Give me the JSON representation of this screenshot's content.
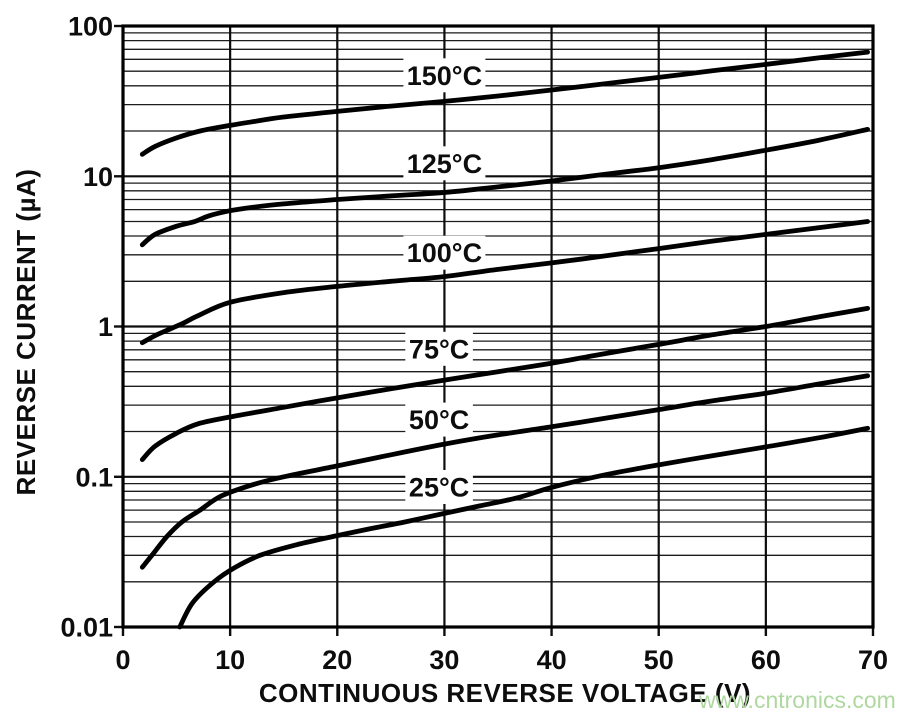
{
  "chart_data": {
    "type": "line",
    "title": "",
    "x_axis": {
      "label": "CONTINUOUS REVERSE VOLTAGE (V)",
      "min": 0,
      "max": 70,
      "tick_values": [
        0,
        10,
        20,
        30,
        40,
        50,
        60,
        70
      ],
      "tick_labels": [
        "0",
        "10",
        "20",
        "30",
        "40",
        "50",
        "60",
        "70"
      ],
      "gridlines": "major-every-10V"
    },
    "y_axis": {
      "label": "REVERSE CURRENT (µA)",
      "scale": "log",
      "min": 0.01,
      "max": 100,
      "tick_values": [
        100,
        10,
        1,
        0.1,
        0.01
      ],
      "tick_labels": [
        "100",
        "10",
        "1",
        "0.1",
        "0.01"
      ],
      "gridlines": "major-decades-plus-log-minors"
    },
    "series": [
      {
        "name": "150°C",
        "label_at": [
          30,
          47
        ],
        "points": [
          [
            1.8,
            14
          ],
          [
            3,
            15.8
          ],
          [
            5,
            18
          ],
          [
            7.2,
            20
          ],
          [
            10,
            21.8
          ],
          [
            12,
            23
          ],
          [
            15,
            24.8
          ],
          [
            20,
            27
          ],
          [
            25,
            29.3
          ],
          [
            30,
            31.5
          ],
          [
            35,
            34.2
          ],
          [
            40,
            37.5
          ],
          [
            45,
            41.3
          ],
          [
            50,
            45.5
          ],
          [
            55,
            50.3
          ],
          [
            60,
            55.5
          ],
          [
            65,
            61.5
          ],
          [
            69.5,
            67
          ]
        ]
      },
      {
        "name": "125°C",
        "label_at": [
          30,
          12.2
        ],
        "points": [
          [
            1.8,
            3.5
          ],
          [
            3,
            4.1
          ],
          [
            5,
            4.65
          ],
          [
            6.7,
            5
          ],
          [
            8,
            5.45
          ],
          [
            10,
            5.9
          ],
          [
            12,
            6.2
          ],
          [
            15,
            6.55
          ],
          [
            20,
            7
          ],
          [
            25,
            7.4
          ],
          [
            30,
            7.8
          ],
          [
            35,
            8.5
          ],
          [
            40,
            9.3
          ],
          [
            45,
            10.3
          ],
          [
            50,
            11.4
          ],
          [
            55,
            12.9
          ],
          [
            60,
            14.9
          ],
          [
            65,
            17.4
          ],
          [
            69.5,
            20.5
          ]
        ]
      },
      {
        "name": "100°C",
        "label_at": [
          30,
          3.1
        ],
        "points": [
          [
            1.8,
            0.78
          ],
          [
            3,
            0.87
          ],
          [
            4.5,
            0.97
          ],
          [
            5.6,
            1.05
          ],
          [
            7,
            1.18
          ],
          [
            10,
            1.45
          ],
          [
            15,
            1.68
          ],
          [
            20,
            1.85
          ],
          [
            25,
            2
          ],
          [
            30,
            2.15
          ],
          [
            35,
            2.4
          ],
          [
            40,
            2.65
          ],
          [
            45,
            2.95
          ],
          [
            50,
            3.3
          ],
          [
            55,
            3.7
          ],
          [
            60,
            4.1
          ],
          [
            65,
            4.55
          ],
          [
            69.5,
            5
          ]
        ]
      },
      {
        "name": "75°C",
        "label_at": [
          29.5,
          0.71
        ],
        "points": [
          [
            1.8,
            0.13
          ],
          [
            3,
            0.16
          ],
          [
            5,
            0.195
          ],
          [
            7,
            0.225
          ],
          [
            10,
            0.25
          ],
          [
            15,
            0.29
          ],
          [
            20,
            0.335
          ],
          [
            25,
            0.385
          ],
          [
            30,
            0.44
          ],
          [
            35,
            0.5
          ],
          [
            40,
            0.57
          ],
          [
            45,
            0.66
          ],
          [
            50,
            0.76
          ],
          [
            55,
            0.88
          ],
          [
            60,
            1.0
          ],
          [
            65,
            1.16
          ],
          [
            69.5,
            1.32
          ]
        ]
      },
      {
        "name": "50°C",
        "label_at": [
          29.5,
          0.24
        ],
        "points": [
          [
            1.8,
            0.025
          ],
          [
            2.7,
            0.03
          ],
          [
            4.1,
            0.04
          ],
          [
            5.5,
            0.05
          ],
          [
            7.2,
            0.06
          ],
          [
            9.1,
            0.074
          ],
          [
            12,
            0.088
          ],
          [
            15,
            0.1
          ],
          [
            20,
            0.118
          ],
          [
            25,
            0.14
          ],
          [
            30,
            0.165
          ],
          [
            35,
            0.19
          ],
          [
            40,
            0.215
          ],
          [
            45,
            0.245
          ],
          [
            50,
            0.28
          ],
          [
            55,
            0.32
          ],
          [
            60,
            0.36
          ],
          [
            65,
            0.415
          ],
          [
            69.5,
            0.47
          ]
        ]
      },
      {
        "name": "25°C",
        "label_at": [
          29.5,
          0.0855
        ],
        "points": [
          [
            5.3,
            0.01
          ],
          [
            6.5,
            0.0145
          ],
          [
            8.5,
            0.02
          ],
          [
            10.5,
            0.025
          ],
          [
            12.8,
            0.03
          ],
          [
            16,
            0.035
          ],
          [
            19.6,
            0.04
          ],
          [
            23,
            0.045
          ],
          [
            26.3,
            0.05
          ],
          [
            30,
            0.057
          ],
          [
            33.3,
            0.064
          ],
          [
            37,
            0.073
          ],
          [
            40,
            0.085
          ],
          [
            45,
            0.103
          ],
          [
            50,
            0.12
          ],
          [
            55,
            0.138
          ],
          [
            60,
            0.158
          ],
          [
            65,
            0.182
          ],
          [
            69.5,
            0.21
          ]
        ]
      }
    ]
  },
  "watermark": {
    "text": "www.cntronics.com",
    "color": "#aed8a0"
  }
}
